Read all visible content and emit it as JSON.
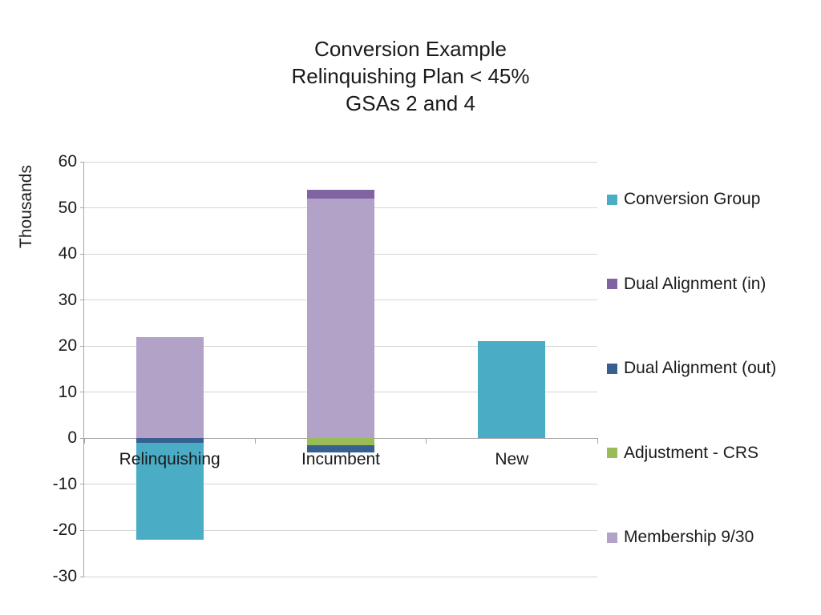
{
  "chart_data": {
    "type": "bar",
    "stacked": true,
    "title_lines": [
      "Conversion Example",
      "Relinquishing Plan < 45%",
      "GSAs 2 and 4"
    ],
    "y_axis_title": "Thousands",
    "categories": [
      "Relinquishing",
      "Incumbent",
      "New"
    ],
    "series": [
      {
        "name": "Conversion Group",
        "color": "#4BACC6",
        "values": [
          -21,
          0,
          21
        ]
      },
      {
        "name": "Dual Alignment (in)",
        "color": "#8064A2",
        "values": [
          0,
          2,
          0
        ]
      },
      {
        "name": "Dual Alignment (out)",
        "color": "#376092",
        "values": [
          -1,
          -1.5,
          0
        ]
      },
      {
        "name": "Adjustment - CRS",
        "color": "#9BBB59",
        "values": [
          0,
          -1.5,
          0
        ]
      },
      {
        "name": "Membership 9/30",
        "color": "#B3A2C7",
        "values": [
          22,
          52,
          0
        ]
      }
    ],
    "ylim": [
      -30,
      60
    ],
    "y_ticks": [
      60,
      50,
      40,
      30,
      20,
      10,
      0,
      -10,
      -20,
      -30
    ],
    "grid": true,
    "legend_position": "right",
    "axis_color": "#A6A6A6",
    "gridline_color": "#D5D5D5",
    "text_color": "#1a1a1a"
  }
}
